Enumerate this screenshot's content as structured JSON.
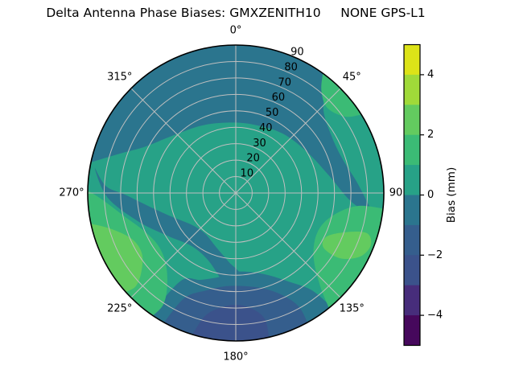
{
  "title": "Delta Antenna Phase Biases: GMXZENITH10     NONE GPS-L1",
  "chart_data": {
    "type": "polar_contour",
    "description": "Sky-plot (azimuth/zenith-angle polar grid) of antenna phase bias contour bands",
    "angular_ticks": [
      {
        "label": "0°",
        "angle": 0
      },
      {
        "label": "45°",
        "angle": 45
      },
      {
        "label": "90",
        "angle": 90
      },
      {
        "label": "135°",
        "angle": 135
      },
      {
        "label": "180°",
        "angle": 180
      },
      {
        "label": "225°",
        "angle": 225
      },
      {
        "label": "270°",
        "angle": 270
      },
      {
        "label": "315°",
        "angle": 315
      }
    ],
    "radial_ticks": [
      {
        "label": "10",
        "value": 10
      },
      {
        "label": "20",
        "value": 20
      },
      {
        "label": "30",
        "value": 30
      },
      {
        "label": "40",
        "value": 40
      },
      {
        "label": "50",
        "value": 50
      },
      {
        "label": "60",
        "value": 60
      },
      {
        "label": "70",
        "value": 70
      },
      {
        "label": "80",
        "value": 80
      },
      {
        "label": "90",
        "value": 90
      }
    ],
    "radial_axis": {
      "min": 0,
      "max": 90,
      "tick_label_angle_deg": 22.5
    },
    "grid": {
      "color": "#bfbfbf",
      "ring_step": 10,
      "spoke_step_deg": 45,
      "outline_color": "#000000"
    },
    "colorbar": {
      "label": "Bias (mm)",
      "range": [
        -5,
        5
      ],
      "tick_labels": [
        "4",
        "2",
        "0",
        "−2",
        "−4"
      ],
      "tick_values": [
        4,
        2,
        0,
        -2,
        -4
      ],
      "bands_top_to_bottom": [
        {
          "from": 4,
          "to": 5,
          "color": "#dde318"
        },
        {
          "from": 3,
          "to": 4,
          "color": "#a0da39"
        },
        {
          "from": 2,
          "to": 3,
          "color": "#63cb5f"
        },
        {
          "from": 1,
          "to": 2,
          "color": "#3bbb75"
        },
        {
          "from": 0,
          "to": 1,
          "color": "#27a287"
        },
        {
          "from": -1,
          "to": 0,
          "color": "#2b758e"
        },
        {
          "from": -2,
          "to": -1,
          "color": "#355e8d"
        },
        {
          "from": -3,
          "to": -2,
          "color": "#3b528b"
        },
        {
          "from": -4,
          "to": -3,
          "color": "#472d7b"
        },
        {
          "from": -5,
          "to": -4,
          "color": "#46085c"
        }
      ]
    },
    "regions": [
      {
        "name": "background-disk",
        "level": "0 to 1",
        "color": "#27a287",
        "shape": "disk"
      },
      {
        "name": "north-cap",
        "level": "-1 to 0",
        "color": "#2b758e",
        "rim": [
          282,
          38
        ],
        "inner": [
          [
            46,
            74
          ],
          [
            58,
            68
          ],
          [
            72,
            68
          ],
          [
            85,
            74
          ],
          [
            95,
            81
          ],
          [
            100,
            86
          ],
          [
            94,
            70
          ],
          [
            80,
            58
          ],
          [
            60,
            50
          ],
          [
            38,
            46
          ],
          [
            15,
            43
          ],
          [
            355,
            43
          ],
          [
            333,
            46
          ],
          [
            312,
            52
          ],
          [
            297,
            62
          ],
          [
            289,
            74
          ]
        ]
      },
      {
        "name": "southwest-arm",
        "level": "-1 to 0",
        "color": "#2b758e",
        "blob": [
          [
            280,
            87
          ],
          [
            268,
            78
          ],
          [
            254,
            62
          ],
          [
            238,
            49
          ],
          [
            220,
            42
          ],
          [
            203,
            44
          ],
          [
            191,
            52
          ],
          [
            183,
            62
          ],
          [
            180,
            72
          ],
          [
            176,
            52
          ],
          [
            186,
            42
          ],
          [
            200,
            35
          ],
          [
            217,
            31
          ],
          [
            234,
            33
          ],
          [
            249,
            41
          ],
          [
            261,
            53
          ],
          [
            269,
            67
          ],
          [
            273,
            79
          ]
        ]
      },
      {
        "name": "south-band",
        "level": "-1 to 0",
        "color": "#2b758e",
        "rim": [
          140,
          215
        ],
        "inner": [
          [
            212,
            63
          ],
          [
            202,
            57
          ],
          [
            191,
            52
          ],
          [
            180,
            48
          ],
          [
            169,
            49
          ],
          [
            158,
            54
          ],
          [
            149,
            63
          ],
          [
            142,
            75
          ]
        ]
      },
      {
        "name": "south-blue",
        "level": "-2 to -1",
        "color": "#355e8d",
        "rim": [
          151,
          209
        ],
        "inner": [
          [
            206,
            71
          ],
          [
            197,
            62
          ],
          [
            186,
            57
          ],
          [
            174,
            57
          ],
          [
            163,
            61
          ],
          [
            155,
            69
          ],
          [
            151,
            79
          ]
        ]
      },
      {
        "name": "south-blue-core",
        "level": "-3 to -2",
        "color": "#3b528b",
        "rim": [
          167,
          197
        ],
        "inner": [
          [
            194,
            77
          ],
          [
            187,
            70
          ],
          [
            179,
            68
          ],
          [
            171,
            72
          ],
          [
            167,
            79
          ]
        ]
      },
      {
        "name": "southwest-green",
        "level": "1 to 2",
        "color": "#3bbb75",
        "rim": [
          214,
          271
        ],
        "inner": [
          [
            267,
            81
          ],
          [
            258,
            69
          ],
          [
            247,
            60
          ],
          [
            235,
            57
          ],
          [
            224,
            61
          ],
          [
            216,
            71
          ],
          [
            213,
            81
          ]
        ]
      },
      {
        "name": "southwest-lightgreen",
        "level": "2 to 3",
        "color": "#63cb5f",
        "rim": [
          228,
          258
        ],
        "inner": [
          [
            254,
            79
          ],
          [
            246,
            69
          ],
          [
            237,
            68
          ],
          [
            230,
            75
          ],
          [
            227,
            83
          ]
        ]
      },
      {
        "name": "southeast-green",
        "level": "1 to 2",
        "color": "#3bbb75",
        "rim": [
          96,
          141
        ],
        "inner": [
          [
            138,
            77
          ],
          [
            131,
            63
          ],
          [
            121,
            56
          ],
          [
            110,
            56
          ],
          [
            101,
            63
          ],
          [
            96,
            75
          ]
        ]
      },
      {
        "name": "southeast-lightgreen",
        "level": "2 to 3",
        "color": "#63cb5f",
        "blob": [
          [
            107,
            83
          ],
          [
            110,
            70
          ],
          [
            116,
            61
          ],
          [
            122,
            63
          ],
          [
            122,
            75
          ],
          [
            117,
            85
          ],
          [
            111,
            88
          ]
        ]
      },
      {
        "name": "northeast-green-sliver",
        "level": "1 to 2",
        "color": "#3bbb75",
        "rim": [
          36,
          58
        ],
        "inner": [
          [
            55,
            81
          ],
          [
            47,
            76
          ],
          [
            40,
            81
          ]
        ]
      }
    ]
  }
}
